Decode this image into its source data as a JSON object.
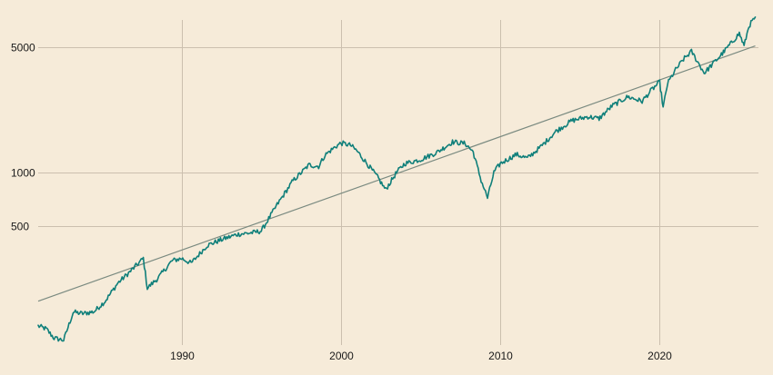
{
  "chart_data": {
    "type": "line",
    "y_scale": "log",
    "grid": true,
    "colors": {
      "background": "#f6ebd9",
      "grid": "#cbbfae",
      "series": "#0f7f7a",
      "trend": "#7a8a80",
      "text": "#1a1a1a"
    },
    "xlim": [
      1981.0,
      2026.2
    ],
    "ylim": [
      108,
      8400
    ],
    "x_ticks": [
      {
        "value": 1990,
        "label": "1990"
      },
      {
        "value": 2000,
        "label": "2000"
      },
      {
        "value": 2010,
        "label": "2010"
      },
      {
        "value": 2020,
        "label": "2020"
      }
    ],
    "y_ticks": [
      {
        "value": 500,
        "label": "500"
      },
      {
        "value": 1000,
        "label": "1000"
      },
      {
        "value": 5000,
        "label": "5000"
      }
    ],
    "series": [
      {
        "key": "index",
        "x": [
          1981.0,
          1981.5,
          1982.0,
          1982.6,
          1983.2,
          1983.8,
          1984.5,
          1985.2,
          1986.0,
          1986.8,
          1987.6,
          1987.85,
          1988.5,
          1989.4,
          1990.0,
          1990.6,
          1991.0,
          1991.6,
          1992.5,
          1993.5,
          1994.5,
          1995.0,
          1996.0,
          1997.0,
          1998.0,
          1998.6,
          1999.0,
          1999.6,
          2000.0,
          2000.6,
          2001.0,
          2001.7,
          2002.3,
          2002.8,
          2003.5,
          2004.0,
          2005.0,
          2006.0,
          2007.0,
          2007.8,
          2008.3,
          2008.8,
          2009.2,
          2009.6,
          2010.0,
          2011.0,
          2011.7,
          2012.5,
          2013.5,
          2014.5,
          2015.5,
          2016.2,
          2017.0,
          2018.0,
          2018.9,
          2019.5,
          2020.0,
          2020.22,
          2020.5,
          2021.0,
          2021.5,
          2022.0,
          2022.8,
          2023.5,
          2024.0,
          2024.5,
          2025.0,
          2025.3,
          2025.6,
          2026.0
        ],
        "y": [
          138,
          133,
          118,
          115,
          165,
          162,
          166,
          190,
          240,
          280,
          330,
          225,
          255,
          320,
          330,
          310,
          340,
          390,
          420,
          450,
          460,
          470,
          660,
          900,
          1100,
          1080,
          1250,
          1380,
          1460,
          1420,
          1320,
          1100,
          940,
          800,
          1000,
          1120,
          1180,
          1290,
          1480,
          1450,
          1300,
          900,
          720,
          1000,
          1120,
          1260,
          1200,
          1380,
          1700,
          1950,
          2050,
          2000,
          2350,
          2650,
          2500,
          2900,
          3200,
          2300,
          3150,
          3750,
          4300,
          4750,
          3600,
          4200,
          4700,
          5300,
          6000,
          5100,
          6600,
          7400
        ]
      },
      {
        "key": "trend",
        "x": [
          1981.0,
          2026.0
        ],
        "y": [
          190,
          5100
        ]
      }
    ]
  }
}
